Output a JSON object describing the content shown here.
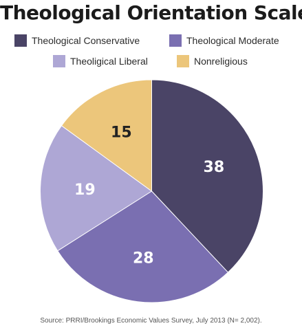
{
  "chart_data": {
    "type": "pie",
    "title": "Theological Orientation Scale",
    "categories": [
      "Theological Conservative",
      "Theological Moderate",
      "Theoligical Liberal",
      "Nonreligious"
    ],
    "values": [
      38,
      28,
      19,
      15
    ],
    "colors": [
      "#4a4466",
      "#7a6fb1",
      "#aea7d5",
      "#ecc67b"
    ],
    "label_colors": [
      "#ffffff",
      "#ffffff",
      "#ffffff",
      "#222222"
    ],
    "legend_placement": "top",
    "start_angle_deg": 0,
    "direction": "clockwise"
  },
  "source": "Source: PRRI/Brookings Economic Values Survey, July 2013 (N= 2,002)."
}
